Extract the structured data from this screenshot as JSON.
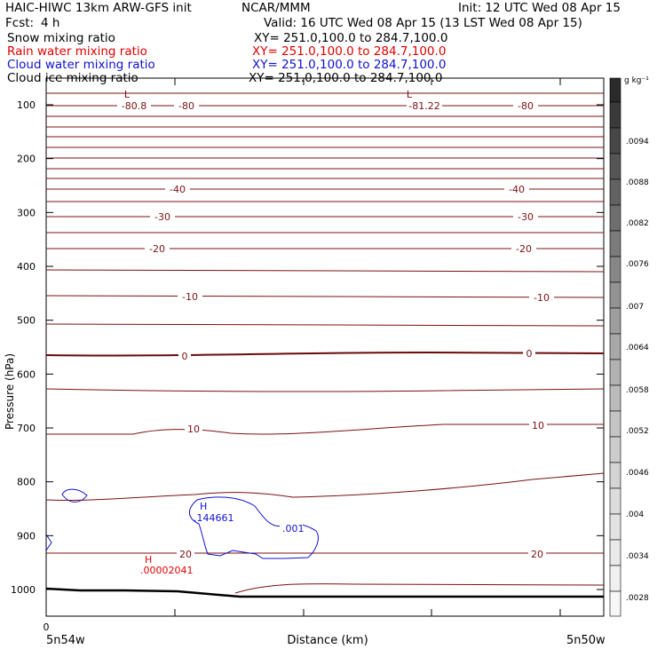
{
  "header": {
    "model": "HAIC-HIWC 13km ARW-GFS init",
    "org": "NCAR/MMM",
    "init": "Init: 12 UTC Wed 08 Apr 15",
    "fcst_label": "Fcst:",
    "fcst_value": "4 h",
    "valid": "Valid: 16 UTC Wed 08 Apr 15 (13 LST Wed 08 Apr 15)"
  },
  "fields": [
    {
      "name": "Snow mixing ratio",
      "xy": "XY= 251.0,100.0 to 284.7,100.0",
      "color": "#000000"
    },
    {
      "name": "Rain water mixing ratio",
      "xy": "XY= 251.0,100.0 to 284.7,100.0",
      "color": "#e00000"
    },
    {
      "name": "Cloud water mixing ratio",
      "xy": "XY= 251.0,100.0 to 284.7,100.0",
      "color": "#1010d0"
    },
    {
      "name": "Cloud ice mixing ratio",
      "xy": "XY= 251.0,100.0 to 284.7,100.0",
      "color": "#000000"
    }
  ],
  "chart_data": {
    "type": "contour-cross-section",
    "ylabel": "Pressure (hPa)",
    "xlabel": "Distance (km)",
    "x_tick_label": "0",
    "x_left_label": "5n54w",
    "x_right_label": "5n50w",
    "y_ticks": [
      100,
      200,
      300,
      400,
      500,
      600,
      700,
      800,
      900,
      1000
    ],
    "colorbar_unit": "g kg⁻¹",
    "colorbar_ticks": [
      ".0094",
      ".0088",
      ".0082",
      ".0076",
      ".007",
      ".0064",
      ".0058",
      ".0052",
      ".0046",
      ".004",
      ".0034",
      ".0028"
    ],
    "temperature_contour_labels": [
      "-80.8",
      "-80",
      "-81.22",
      "-80",
      "-40",
      "-40",
      "-30",
      "-30",
      "-20",
      "-20",
      "-10",
      "-10",
      "0",
      "0",
      "10",
      "10",
      "20",
      "20"
    ],
    "low_marks": [
      "L",
      "L"
    ],
    "highs": [
      {
        "mark": "H",
        "value": ".144661",
        "color": "#1010d0"
      },
      {
        "mark": "H",
        "value": ".00002041",
        "color": "#e00000"
      }
    ],
    "cloud_contour_label": ".001",
    "colors": {
      "temperature": "#7a1010",
      "cloud": "#1010d0",
      "rain": "#e00000"
    }
  }
}
